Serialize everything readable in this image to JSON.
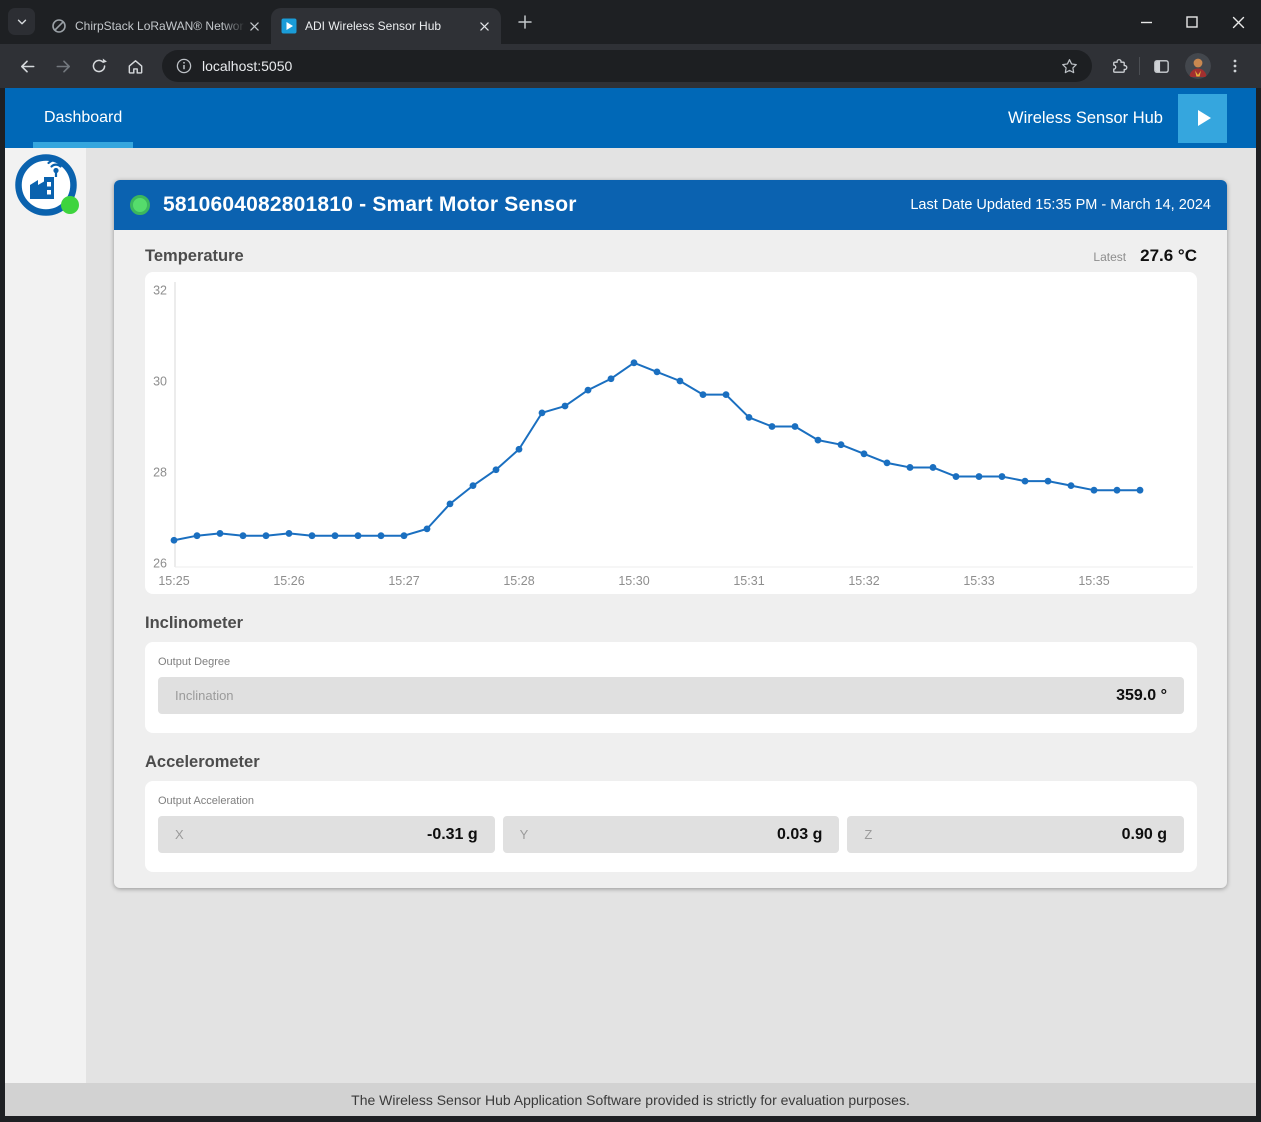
{
  "browser": {
    "tabs": [
      {
        "label": "ChirpStack LoRaWAN® Networ",
        "active": false
      },
      {
        "label": "ADI Wireless Sensor Hub",
        "active": true
      }
    ],
    "url": "localhost:5050"
  },
  "app": {
    "nav": {
      "dashboard_label": "Dashboard",
      "brand_label": "Wireless Sensor Hub"
    },
    "device_card": {
      "title": "5810604082801810 - Smart Motor Sensor",
      "updated": "Last Date Updated 15:35 PM - March 14, 2024",
      "temperature": {
        "heading": "Temperature",
        "latest_label": "Latest",
        "latest_value": "27.6 °C"
      },
      "inclinometer": {
        "heading": "Inclinometer",
        "group_label": "Output Degree",
        "fields": [
          {
            "label": "Inclination",
            "value": "359.0 °"
          }
        ]
      },
      "accelerometer": {
        "heading": "Accelerometer",
        "group_label": "Output Acceleration",
        "fields": [
          {
            "label": "X",
            "value": "-0.31 g"
          },
          {
            "label": "Y",
            "value": "0.03 g"
          },
          {
            "label": "Z",
            "value": "0.90 g"
          }
        ]
      }
    },
    "footer": "The Wireless Sensor Hub Application Software provided is strictly for evaluation purposes."
  },
  "chart_data": {
    "type": "line",
    "title": "Temperature",
    "series": [
      {
        "name": "Temperature (°C)",
        "values": [
          26.5,
          26.6,
          26.65,
          26.6,
          26.6,
          26.65,
          26.6,
          26.6,
          26.6,
          26.6,
          26.6,
          26.75,
          27.3,
          27.7,
          28.05,
          28.5,
          29.3,
          29.45,
          29.8,
          30.05,
          30.4,
          30.2,
          30.0,
          29.7,
          29.7,
          29.2,
          29.0,
          29.0,
          28.7,
          28.6,
          28.4,
          28.2,
          28.1,
          28.1,
          27.9,
          27.9,
          27.9,
          27.8,
          27.8,
          27.7,
          27.6,
          27.6,
          27.6
        ]
      }
    ],
    "x_tick_labels": [
      "15:25",
      "15:26",
      "15:27",
      "15:28",
      "15:30",
      "15:31",
      "15:32",
      "15:33",
      "15:35"
    ],
    "x_tick_point_interval": 5,
    "y_ticks": [
      26,
      28,
      30,
      32
    ],
    "ylim": [
      26,
      32
    ],
    "grid": false,
    "legend": "none",
    "line_color": "#1a6fc0"
  },
  "colors": {
    "header_blue": "#0068b7",
    "card_header_blue": "#0b62b0",
    "accent_light_blue": "#35a6de",
    "chart_line_blue": "#1a6fc0",
    "status_green": "#4ed767",
    "logo_green": "#3ed43e"
  }
}
